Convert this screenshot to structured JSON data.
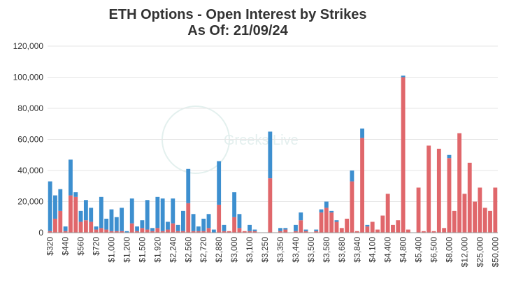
{
  "chart_data": {
    "type": "stacked-bar",
    "title": "ETH Options - Open Interest by Strikes",
    "subtitle": "As Of: 21/09/24",
    "watermark": "Greeks.Live",
    "categories": [
      "$320",
      null,
      null,
      "$440",
      null,
      null,
      "$560",
      null,
      null,
      "$720",
      null,
      null,
      "$1,000",
      null,
      null,
      "$1,200",
      null,
      null,
      "$1,500",
      null,
      null,
      "$1,920",
      null,
      null,
      "$2,240",
      null,
      null,
      "$2,560",
      null,
      null,
      "$2,720",
      null,
      null,
      "$2,880",
      null,
      null,
      "$3,000",
      null,
      null,
      "$3,100",
      null,
      null,
      "$3,250",
      null,
      null,
      "$3,350",
      null,
      null,
      "$3,440",
      null,
      null,
      "$3,500",
      null,
      null,
      "$3,580",
      null,
      null,
      "$3,680",
      null,
      null,
      "$3,840",
      null,
      null,
      "$4,100",
      null,
      null,
      "$4,400",
      null,
      null,
      "$4,800",
      null,
      null,
      "$5,400",
      null,
      null,
      "$6,500",
      null,
      null,
      "$8,000",
      null,
      null,
      "$12,000",
      null,
      null,
      "$25,000",
      null,
      null,
      "$50,000"
    ],
    "series": [
      {
        "color": "#e0676b",
        "values": [
          1000,
          9000,
          14000,
          1000,
          24000,
          23000,
          7000,
          8000,
          7000,
          2000,
          3000,
          2000,
          1000,
          1000,
          1000,
          0,
          6000,
          1000,
          3000,
          2000,
          1000,
          3000,
          1000,
          2000,
          6000,
          1000,
          1000,
          19000,
          1000,
          1000,
          1000,
          3000,
          0,
          18000,
          1000,
          1000,
          10000,
          3000,
          1000,
          1000,
          1000,
          0,
          0,
          35000,
          0,
          1000,
          2000,
          0,
          1000,
          8000,
          1000,
          0,
          1000,
          13000,
          16000,
          13000,
          7000,
          3000,
          9000,
          33000,
          1000,
          61000,
          4000,
          7000,
          2000,
          11000,
          25000,
          5000,
          8000,
          100000,
          2000,
          0,
          29000,
          1000,
          56000,
          1000,
          54000,
          3000,
          48000,
          14000,
          64000,
          25000,
          45000,
          20000,
          29000,
          16000,
          14000,
          29000
        ]
      },
      {
        "color": "#3d8fcf",
        "values": [
          32000,
          15000,
          14000,
          3000,
          23000,
          3000,
          7000,
          13000,
          9000,
          2000,
          20000,
          7000,
          14000,
          9000,
          15000,
          1000,
          16000,
          3000,
          5000,
          19000,
          2000,
          20000,
          21000,
          5000,
          16000,
          4000,
          13000,
          22000,
          11000,
          3000,
          8000,
          9000,
          2000,
          28000,
          4000,
          0,
          16000,
          9000,
          0,
          4000,
          1000,
          0,
          0,
          30000,
          0,
          2000,
          1000,
          0,
          4000,
          5000,
          1000,
          0,
          1000,
          2000,
          4000,
          1000,
          1000,
          0,
          0,
          7000,
          0,
          6000,
          1000,
          0,
          0,
          0,
          0,
          0,
          0,
          1000,
          0,
          0,
          0,
          0,
          0,
          0,
          0,
          0,
          2000,
          0,
          0,
          0,
          0,
          0,
          0,
          0,
          0,
          0
        ]
      }
    ],
    "ylim": [
      0,
      120000
    ],
    "yticks": [
      0,
      {
        "value": 20000,
        "label": "20,000"
      },
      {
        "value": 40000,
        "label": "40,000"
      },
      {
        "value": 60000,
        "label": "60,000"
      },
      {
        "value": 80000,
        "label": "80,000"
      },
      {
        "value": 100000,
        "label": "100,000"
      },
      {
        "value": 120000,
        "label": "120,000"
      }
    ],
    "grid": true
  }
}
